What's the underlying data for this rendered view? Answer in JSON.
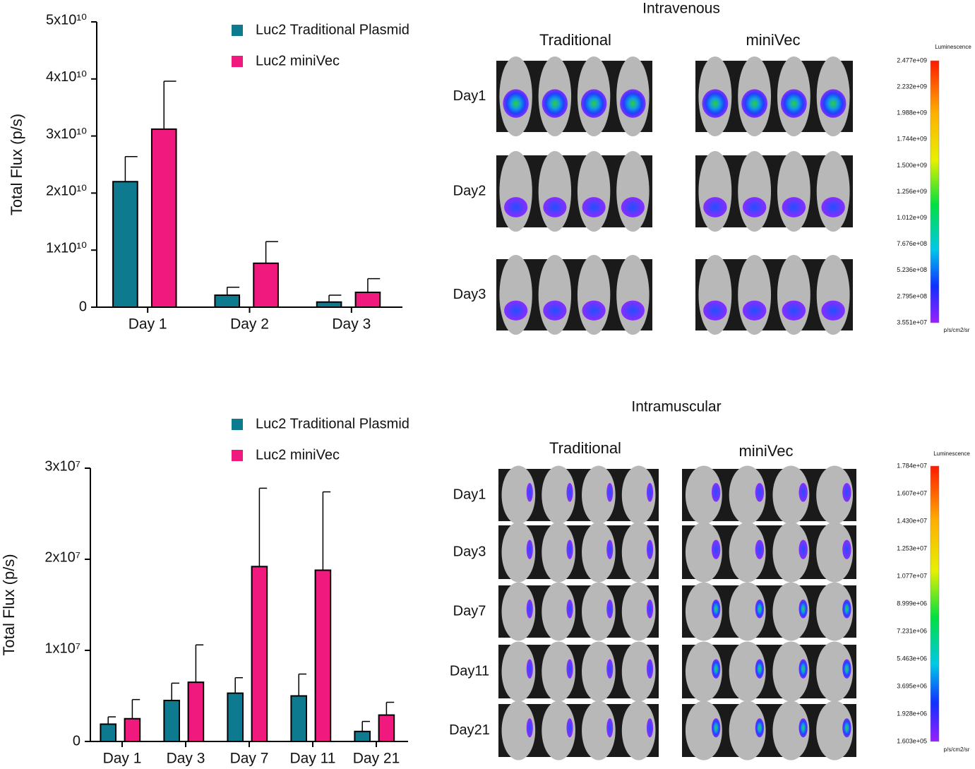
{
  "chart_data": [
    {
      "type": "bar",
      "y_label": "Total Flux (p/s)",
      "categories": [
        "Day 1",
        "Day 2",
        "Day 3"
      ],
      "series": [
        {
          "name": "Luc2 Traditional Plasmid",
          "color": "#0e7a8f",
          "values": [
            22000000000,
            2100000000,
            900000000
          ],
          "errors": [
            4400000000,
            1400000000,
            1200000000
          ]
        },
        {
          "name": "Luc2 miniVec",
          "color": "#f0197d",
          "values": [
            31200000000,
            7700000000,
            2600000000
          ],
          "errors": [
            8400000000,
            3800000000,
            2400000000
          ]
        }
      ],
      "ylim": [
        0,
        50000000000
      ],
      "yticks": [
        0,
        {
          "value": 10000000000,
          "label": "1x10¹⁰"
        },
        {
          "value": 20000000000,
          "label": "2x10¹⁰"
        },
        {
          "value": 30000000000,
          "label": "3x10¹⁰"
        },
        {
          "value": 40000000000,
          "label": "4x10¹⁰"
        },
        {
          "value": 50000000000,
          "label": "5x10¹⁰"
        }
      ]
    },
    {
      "type": "bar",
      "y_label": "Total Flux (p/s)",
      "categories": [
        "Day 1",
        "Day 3",
        "Day 7",
        "Day 11",
        "Day 21"
      ],
      "series": [
        {
          "name": "Luc2 Traditional Plasmid",
          "color": "#0e7a8f",
          "values": [
            1900000,
            4500000,
            5300000,
            5000000,
            1100000
          ],
          "errors": [
            800000,
            1900000,
            1700000,
            2400000,
            1100000
          ]
        },
        {
          "name": "Luc2 miniVec",
          "color": "#f0197d",
          "values": [
            2500000,
            6500000,
            19200000,
            18800000,
            2900000
          ],
          "errors": [
            2100000,
            4100000,
            8600000,
            8600000,
            1400000
          ]
        }
      ],
      "ylim": [
        0,
        30000000
      ],
      "yticks": [
        0,
        {
          "value": 10000000,
          "label": "1x10⁷"
        },
        {
          "value": 20000000,
          "label": "2x10⁷"
        },
        {
          "value": 30000000,
          "label": "3x10⁷"
        }
      ]
    }
  ],
  "imaging": [
    {
      "title": "Intravenous",
      "columns": [
        "Traditional",
        "miniVec"
      ],
      "rows": [
        "Day1",
        "Day2",
        "Day3"
      ],
      "colorbar": {
        "title": "Luminescence",
        "unit": "p/s/cm2/sr",
        "ticks": [
          "2.477e+09",
          "2.232e+09",
          "1.988e+09",
          "1.744e+09",
          "1.500e+09",
          "1.256e+09",
          "1.012e+09",
          "7.676e+08",
          "5.236e+08",
          "2.795e+08",
          "3.551e+07"
        ]
      }
    },
    {
      "title": "Intramuscular",
      "columns": [
        "Traditional",
        "miniVec"
      ],
      "rows": [
        "Day1",
        "Day3",
        "Day7",
        "Day11",
        "Day21"
      ],
      "colorbar": {
        "title": "Luminescence",
        "unit": "p/s/cm2/sr",
        "ticks": [
          "1.784e+07",
          "1.607e+07",
          "1.430e+07",
          "1.253e+07",
          "1.077e+07",
          "8.999e+06",
          "7.231e+06",
          "5.463e+06",
          "3.695e+06",
          "1.928e+06",
          "1.603e+05"
        ]
      }
    }
  ]
}
